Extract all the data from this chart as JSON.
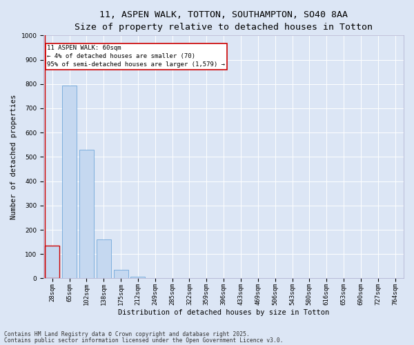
{
  "title_line1": "11, ASPEN WALK, TOTTON, SOUTHAMPTON, SO40 8AA",
  "title_line2": "Size of property relative to detached houses in Totton",
  "xlabel": "Distribution of detached houses by size in Totton",
  "ylabel": "Number of detached properties",
  "categories": [
    "28sqm",
    "65sqm",
    "102sqm",
    "138sqm",
    "175sqm",
    "212sqm",
    "249sqm",
    "285sqm",
    "322sqm",
    "359sqm",
    "396sqm",
    "433sqm",
    "469sqm",
    "506sqm",
    "543sqm",
    "580sqm",
    "616sqm",
    "653sqm",
    "690sqm",
    "727sqm",
    "764sqm"
  ],
  "values": [
    135,
    795,
    530,
    160,
    35,
    8,
    0,
    0,
    0,
    0,
    0,
    0,
    0,
    0,
    0,
    0,
    0,
    0,
    0,
    0,
    0
  ],
  "bar_color": "#c5d8f0",
  "bar_edge_color": "#5b9bd5",
  "highlight_bar_index": 0,
  "highlight_edge_color": "#cc0000",
  "annotation_text": "11 ASPEN WALK: 60sqm\n← 4% of detached houses are smaller (70)\n95% of semi-detached houses are larger (1,579) →",
  "annotation_box_color": "#ffffff",
  "annotation_box_edge_color": "#cc0000",
  "vline_color": "#cc0000",
  "ylim": [
    0,
    1000
  ],
  "yticks": [
    0,
    100,
    200,
    300,
    400,
    500,
    600,
    700,
    800,
    900,
    1000
  ],
  "background_color": "#dce6f5",
  "plot_bg_color": "#dce6f5",
  "footer_line1": "Contains HM Land Registry data © Crown copyright and database right 2025.",
  "footer_line2": "Contains public sector information licensed under the Open Government Licence v3.0.",
  "grid_color": "#ffffff",
  "title_fontsize": 9.5,
  "subtitle_fontsize": 8.5,
  "axis_label_fontsize": 7.5,
  "tick_fontsize": 6.5,
  "annotation_fontsize": 6.5,
  "footer_fontsize": 5.8
}
